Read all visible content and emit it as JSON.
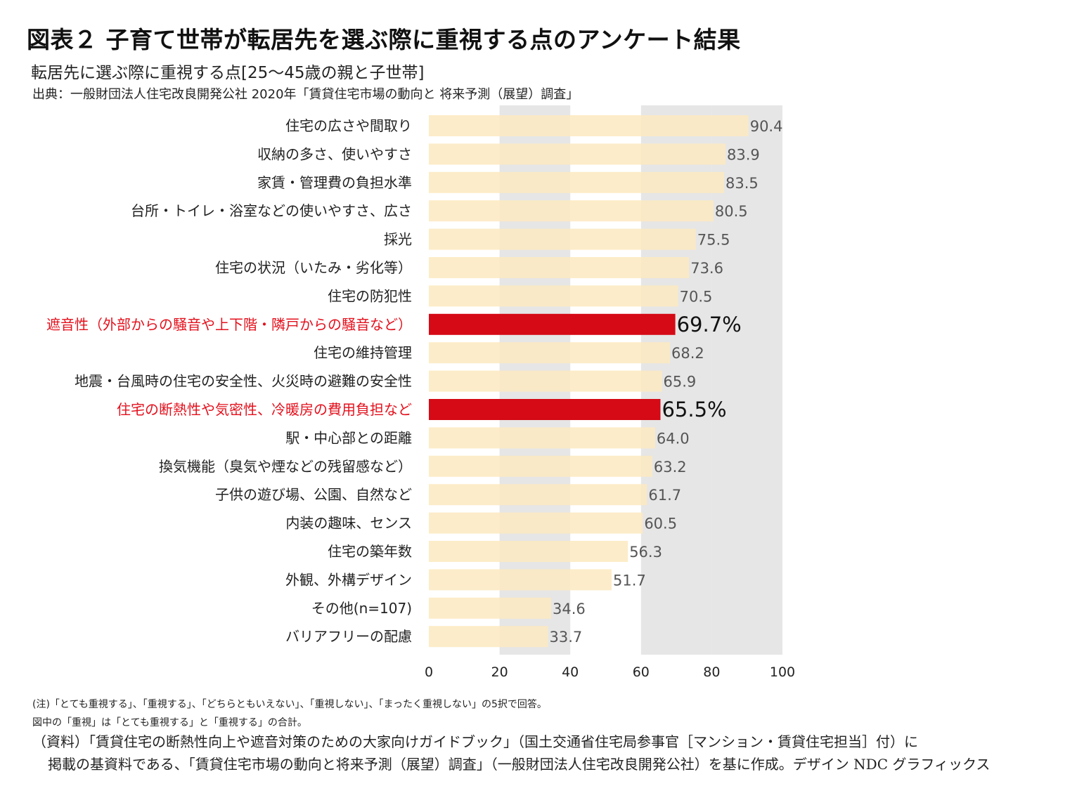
{
  "title": "図表２ 子育て世帯が転居先を選ぶ際に重視する点のアンケート結果",
  "subtitle": "転居先に選ぶ際に重視する点[25～45歳の親と子世帯]",
  "source_line": "出典：一般財団法人住宅改良開発公社 2020年「賃貸住宅市場の動向と 将来予測（展望）調査」",
  "notes": [
    "(注)「とても重視する」、「重視する」、「どちらともいえない」、「重視しない」、「まったく重視しない」の5択で回答。",
    "図中の「重視」は「とても重視する」と「重視する」の合計。"
  ],
  "footnote_first": "（資料）「賃貸住宅の断熱性向上や遮音対策のための大家向けガイドブック」（国土交通省住宅局参事官［マンション・賃貸住宅担当］付）に",
  "footnote_rest": "掲載の基資料である、「賃貸住宅市場の動向と将来予測（展望）調査」（一般財団法人住宅改良開発公社）を基に作成。デザイン NDC グラフィックス",
  "colors": {
    "bar": "#fde9bf",
    "highlight_bar": "#d50a16",
    "highlight_text": "#e3111d",
    "band": "#e6e6e6",
    "text": "#222222"
  },
  "chart_data": {
    "type": "bar",
    "orientation": "horizontal",
    "title": "",
    "xlabel": "",
    "ylabel": "",
    "xlim": [
      0,
      100
    ],
    "xticks": [
      0,
      20,
      40,
      60,
      80,
      100
    ],
    "grid": false,
    "categories": [
      "住宅の広さや間取り",
      "収納の多さ、使いやすさ",
      "家賃・管理費の負担水準",
      "台所・トイレ・浴室などの使いやすさ、広さ",
      "採光",
      "住宅の状況（いたみ・劣化等）",
      "住宅の防犯性",
      "遮音性（外部からの騒音や上下階・隣戸からの騒音など）",
      "住宅の維持管理",
      "地震・台風時の住宅の安全性、火災時の避難の安全性",
      "住宅の断熱性や気密性、冷暖房の費用負担など",
      "駅・中心部との距離",
      "換気機能（臭気や煙などの残留感など）",
      "子供の遊び場、公園、自然など",
      "内装の趣味、センス",
      "住宅の築年数",
      "外観、外構デザイン",
      "その他(n=107)",
      "バリアフリーの配慮"
    ],
    "values": [
      90.4,
      83.9,
      83.5,
      80.5,
      75.5,
      73.6,
      70.5,
      69.7,
      68.2,
      65.9,
      65.5,
      64.0,
      63.2,
      61.7,
      60.5,
      56.3,
      51.7,
      34.6,
      33.7
    ],
    "value_labels": [
      "90.4",
      "83.9",
      "83.5",
      "80.5",
      "75.5",
      "73.6",
      "70.5",
      "69.7%",
      "68.2",
      "65.9",
      "65.5%",
      "64.0",
      "63.2",
      "61.7",
      "60.5",
      "56.3",
      "51.7",
      "34.6",
      "33.7"
    ],
    "highlighted": [
      7,
      10
    ]
  }
}
